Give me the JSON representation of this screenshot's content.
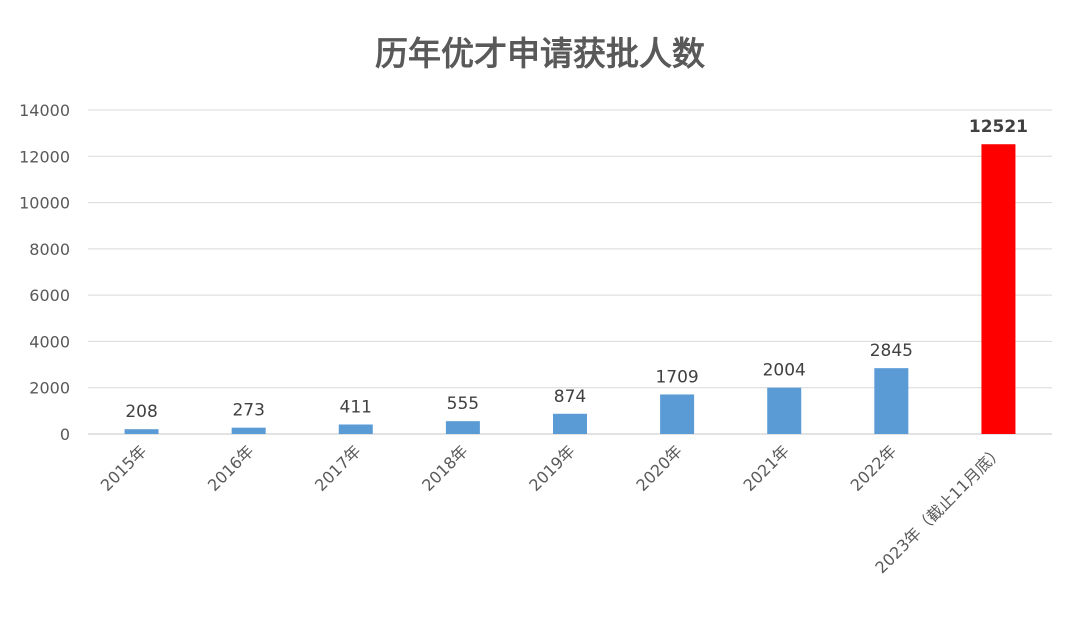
{
  "chart_data": {
    "type": "bar",
    "title": "历年优才申请获批人数",
    "xlabel": "",
    "ylabel": "",
    "categories": [
      "2015年",
      "2016年",
      "2017年",
      "2018年",
      "2019年",
      "2020年",
      "2021年",
      "2022年",
      "2023年（截止11月底）"
    ],
    "values": [
      208,
      273,
      411,
      555,
      874,
      1709,
      2004,
      2845,
      12521
    ],
    "data_labels": [
      "208",
      "273",
      "411",
      "555",
      "874",
      "1709",
      "2004",
      "2845",
      "12521"
    ],
    "ylim": [
      0,
      14000
    ],
    "yticks": [
      0,
      2000,
      4000,
      6000,
      8000,
      10000,
      12000,
      14000
    ],
    "ytick_labels": [
      "0",
      "2000",
      "4000",
      "6000",
      "8000",
      "10000",
      "12000",
      "14000"
    ],
    "grid": true,
    "legend": "none",
    "colors": {
      "bar": "#5B9BD5",
      "highlight": "#FF0000",
      "grid": "#D9D9D9"
    },
    "highlight_index": 8
  }
}
